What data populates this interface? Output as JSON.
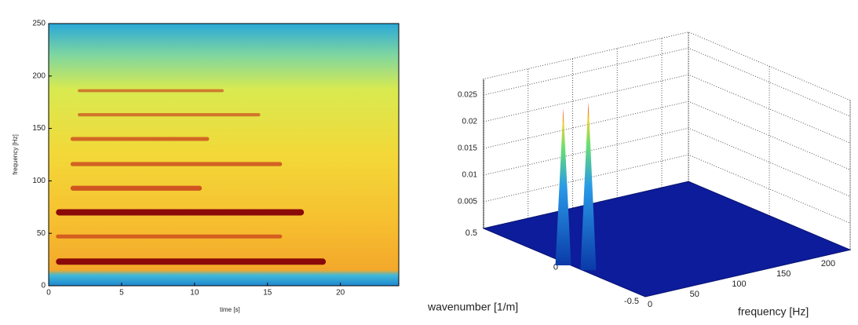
{
  "chart_data": [
    {
      "type": "spectrogram",
      "xlabel": "time [s]",
      "ylabel": "frequency [Hz]",
      "xlim": [
        0,
        24
      ],
      "xticks": [
        0,
        5,
        10,
        15,
        20
      ],
      "ylim": [
        0,
        250
      ],
      "yticks": [
        0,
        50,
        100,
        150,
        200,
        250
      ],
      "harmonic_frequencies": [
        23,
        47,
        70,
        93,
        116,
        140,
        163,
        186
      ],
      "harmonic_start_times": [
        0.5,
        0.5,
        0.5,
        1.5,
        1.5,
        1.5,
        2,
        2
      ],
      "harmonic_end_times": [
        19,
        16,
        17.5,
        10.5,
        16,
        11,
        14.5,
        12
      ],
      "harmonic_strengths": [
        1,
        0.5,
        1,
        0.7,
        0.55,
        0.5,
        0.35,
        0.3
      ]
    },
    {
      "type": "surface3d",
      "xlabel": "frequency [Hz]",
      "ylabel": "wavenumber [1/m]",
      "xlim": [
        0,
        230
      ],
      "xticks": [
        0,
        50,
        100,
        150,
        200
      ],
      "ylim": [
        -0.5,
        0.5
      ],
      "yticks": [
        -0.5,
        0,
        0.5
      ],
      "zlim": [
        0,
        0.028
      ],
      "zticks": [
        0.005,
        0.01,
        0.015,
        0.02,
        0.025
      ],
      "peak_frequencies": [
        35,
        45
      ],
      "peak_wavenumbers": [
        0.2,
        0.1
      ],
      "peak_heights": [
        0.025,
        0.027
      ]
    }
  ]
}
